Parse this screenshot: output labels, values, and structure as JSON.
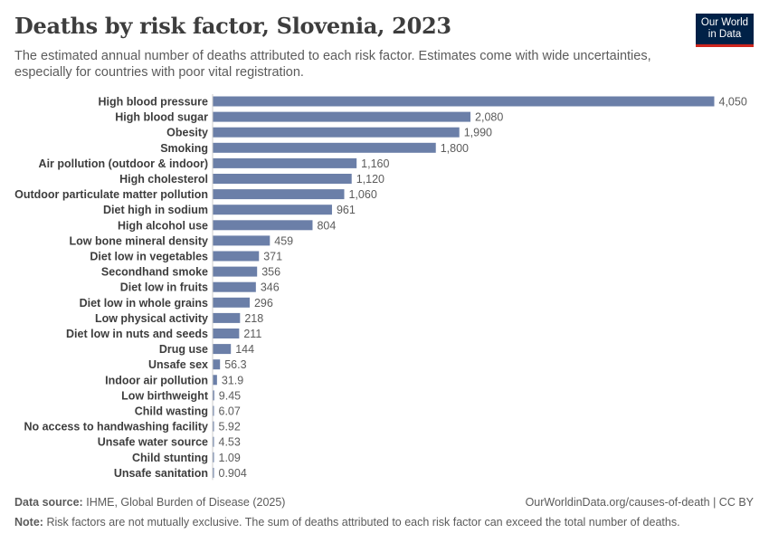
{
  "header": {
    "title": "Deaths by risk factor, Slovenia, 2023",
    "subtitle": "The estimated annual number of deaths attributed to each risk factor. Estimates come with wide uncertainties, especially for countries with poor vital registration."
  },
  "logo": {
    "line1": "Our World",
    "line2": "in Data"
  },
  "footer": {
    "source_label": "Data source:",
    "source_text": "IHME, Global Burden of Disease (2025)",
    "url_text": "OurWorldinData.org/causes-of-death | CC BY",
    "note_label": "Note:",
    "note_text": "Risk factors are not mutually exclusive. The sum of deaths attributed to each risk factor can exceed the total number of deaths."
  },
  "chart_data": {
    "type": "bar",
    "orientation": "horizontal",
    "bar_color": "#6b7fa8",
    "categories": [
      "High blood pressure",
      "High blood sugar",
      "Obesity",
      "Smoking",
      "Air pollution (outdoor & indoor)",
      "High cholesterol",
      "Outdoor particulate matter pollution",
      "Diet high in sodium",
      "High alcohol use",
      "Low bone mineral density",
      "Diet low in vegetables",
      "Secondhand smoke",
      "Diet low in fruits",
      "Diet low in whole grains",
      "Low physical activity",
      "Diet low in nuts and seeds",
      "Drug use",
      "Unsafe sex",
      "Indoor air pollution",
      "Low birthweight",
      "Child wasting",
      "No access to handwashing facility",
      "Unsafe water source",
      "Child stunting",
      "Unsafe sanitation"
    ],
    "values": [
      4050,
      2080,
      1990,
      1800,
      1160,
      1120,
      1060,
      961,
      804,
      459,
      371,
      356,
      346,
      296,
      218,
      211,
      144,
      56.3,
      31.9,
      9.45,
      6.07,
      5.92,
      4.53,
      1.09,
      0.904
    ],
    "value_labels": [
      "4,050",
      "2,080",
      "1,990",
      "1,800",
      "1,160",
      "1,120",
      "1,060",
      "961",
      "804",
      "459",
      "371",
      "356",
      "346",
      "296",
      "218",
      "211",
      "144",
      "56.3",
      "31.9",
      "9.45",
      "6.07",
      "5.92",
      "4.53",
      "1.09",
      "0.904"
    ],
    "xlim": [
      0,
      4050
    ]
  }
}
